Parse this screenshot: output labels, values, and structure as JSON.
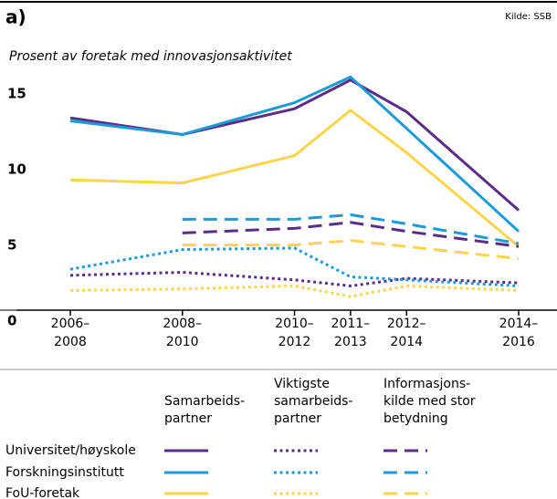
{
  "chart_data": {
    "type": "line",
    "label": "a)",
    "source": "Kilde: SSB",
    "subtitle": "Prosent av foretak med innovasjonsaktivitet",
    "categories": [
      "2006–\n2008",
      "2008–\n2010",
      "2010–\n2012",
      "2011–\n2013",
      "2012–\n2014",
      "2014–\n2016"
    ],
    "ylim": [
      0,
      16
    ],
    "yticks": [
      0,
      5,
      10,
      15
    ],
    "legend": {
      "columns": [
        "Samarbeids-\npartner",
        "Viktigste\nsamarbeids-\npartner",
        "Informasjons-\nkilde med stor\nbetydning"
      ],
      "rows": [
        "Universitet/høyskole",
        "Forskningsinstitutt",
        "FoU-foretak"
      ],
      "line_styles": [
        "solid",
        "dotted",
        "dashed"
      ],
      "colors": [
        "#5b2d86",
        "#1a9ad6",
        "#f9d54a"
      ]
    },
    "series": [
      {
        "row": 0,
        "column": 0,
        "values": [
          12.7,
          11.6,
          13.3,
          15.2,
          13.1,
          6.6
        ]
      },
      {
        "row": 1,
        "column": 0,
        "values": [
          12.5,
          11.6,
          13.7,
          15.4,
          12.0,
          5.2
        ]
      },
      {
        "row": 2,
        "column": 0,
        "values": [
          8.6,
          8.4,
          10.2,
          13.2,
          10.4,
          4.2
        ]
      },
      {
        "row": 0,
        "column": 1,
        "values": [
          2.3,
          2.5,
          2.0,
          1.6,
          2.1,
          1.8
        ]
      },
      {
        "row": 1,
        "column": 1,
        "values": [
          2.7,
          4.0,
          4.1,
          2.2,
          2.0,
          1.6
        ]
      },
      {
        "row": 2,
        "column": 1,
        "values": [
          1.3,
          1.4,
          1.6,
          0.9,
          1.6,
          1.3
        ]
      },
      {
        "row": 0,
        "column": 2,
        "values": [
          null,
          5.1,
          5.4,
          5.8,
          5.2,
          4.2
        ]
      },
      {
        "row": 1,
        "column": 2,
        "values": [
          null,
          6.0,
          6.0,
          6.3,
          5.7,
          4.4
        ]
      },
      {
        "row": 2,
        "column": 2,
        "values": [
          null,
          4.3,
          4.3,
          4.6,
          4.2,
          3.4
        ]
      }
    ]
  }
}
